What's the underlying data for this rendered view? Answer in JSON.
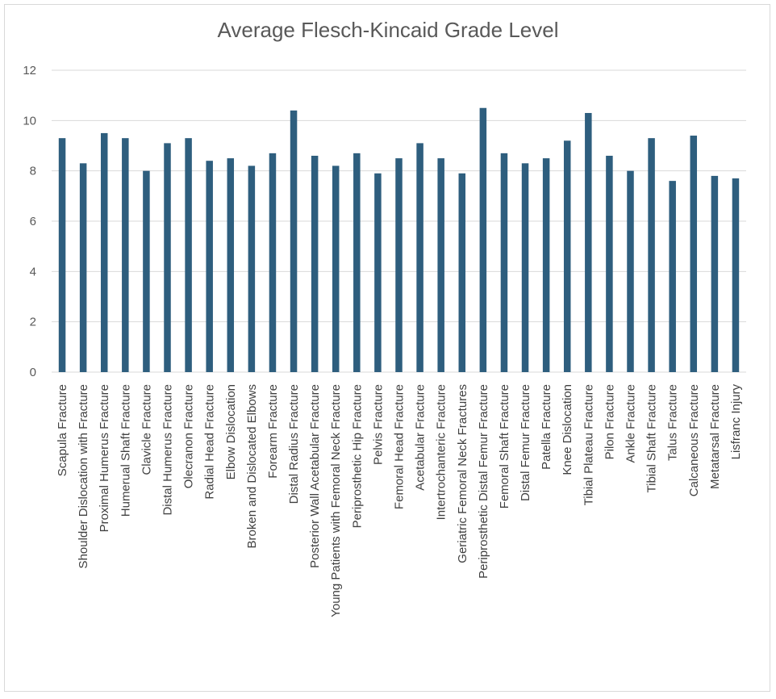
{
  "chart_data": {
    "type": "bar",
    "title": "Average Flesch-Kincaid Grade Level",
    "xlabel": "",
    "ylabel": "",
    "ylim": [
      0,
      12
    ],
    "yticks": [
      0,
      2,
      4,
      6,
      8,
      10,
      12
    ],
    "grid": true,
    "legend": "none",
    "bar_color": "#2e5e7e",
    "grid_color": "#d9d9d9",
    "categories": [
      "Scapula Fracture",
      "Shoulder Dislocation with Fracture",
      "Proximal Humerus Fracture",
      "Humerual Shaft Fracture",
      "Clavicle Fracture",
      "Distal Humerus Fracture",
      "Olecranon Fracture",
      "Radial Head Fracture",
      "Elbow Dislocation",
      "Broken and Dislocated Elbows",
      "Forearm Fracture",
      "Distal Radius Fracture",
      "Posterior Wall Acetabular Fracture",
      "Young Patients with Femoral Neck Fracture",
      "Periprosthetic Hip Fracture",
      "Pelvis Fracture",
      "Femoral Head Fracture",
      "Acetabular Fracture",
      "Intertrochanteric Fracture",
      "Geriatric Femoral Neck Fractures",
      "Periprosthetic Distal Femur Fracture",
      "Femoral Shaft Fracture",
      "Distal Femur Fracture",
      "Patella Fracture",
      "Knee Dislocation",
      "Tibial Plateau Fracture",
      "Pilon Fracture",
      "Ankle Fracture",
      "Tibial Shaft Fracture",
      "Talus Fracture",
      "Calcaneous Fracture",
      "Metatarsal Fracture",
      "Lisfranc Injury"
    ],
    "values": [
      9.3,
      8.3,
      9.5,
      9.3,
      8.0,
      9.1,
      9.3,
      8.4,
      8.5,
      8.2,
      8.7,
      10.4,
      8.6,
      8.2,
      8.7,
      7.9,
      8.5,
      9.1,
      8.5,
      7.9,
      10.5,
      8.7,
      8.3,
      8.5,
      9.2,
      10.3,
      8.6,
      8.0,
      9.3,
      7.6,
      9.4,
      7.8,
      7.7
    ]
  }
}
